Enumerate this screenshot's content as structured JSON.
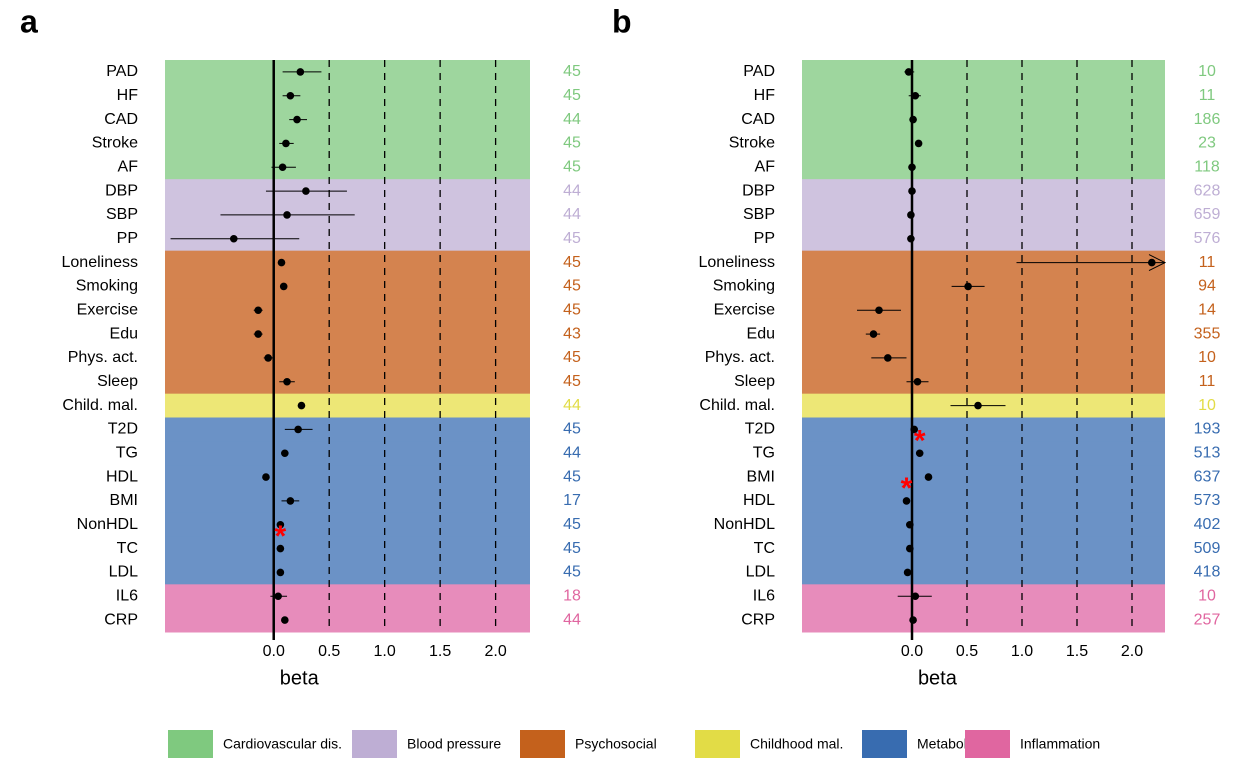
{
  "legend": [
    {
      "name": "Cardiovascular dis.",
      "color": "#7fc97f",
      "band_color": "#9ed69e"
    },
    {
      "name": "Blood pressure",
      "color": "#beaed4",
      "band_color": "#cfc3df"
    },
    {
      "name": "Psychosocial",
      "color": "#c4611c",
      "band_color": "#d4834f"
    },
    {
      "name": "Childhood mal.",
      "color": "#e2dc46",
      "band_color": "#ede776"
    },
    {
      "name": "Metabolic",
      "color": "#386cb0",
      "band_color": "#6b92c6"
    },
    {
      "name": "Inflammation",
      "color": "#e066a0",
      "band_color": "#e78cbb"
    }
  ],
  "chart_data": [
    {
      "type": "forest",
      "panel": "a",
      "x_label": "beta",
      "categories": [
        "PAD",
        "HF",
        "CAD",
        "Stroke",
        "AF",
        "DBP",
        "SBP",
        "PP",
        "Loneliness",
        "Smoking",
        "Exercise",
        "Edu",
        "Phys. act.",
        "Sleep",
        "Child. mal.",
        "T2D",
        "TG",
        "HDL",
        "BMI",
        "NonHDL",
        "TC",
        "LDL",
        "IL6",
        "CRP"
      ],
      "group": [
        "Cardiovascular dis.",
        "Cardiovascular dis.",
        "Cardiovascular dis.",
        "Cardiovascular dis.",
        "Cardiovascular dis.",
        "Blood pressure",
        "Blood pressure",
        "Blood pressure",
        "Psychosocial",
        "Psychosocial",
        "Psychosocial",
        "Psychosocial",
        "Psychosocial",
        "Psychosocial",
        "Childhood mal.",
        "Metabolic",
        "Metabolic",
        "Metabolic",
        "Metabolic",
        "Metabolic",
        "Metabolic",
        "Metabolic",
        "Inflammation",
        "Inflammation"
      ],
      "values": [
        0.24,
        0.15,
        0.21,
        0.11,
        0.08,
        0.29,
        0.12,
        -0.36,
        0.07,
        0.09,
        -0.14,
        -0.14,
        -0.05,
        0.12,
        0.25,
        0.22,
        0.1,
        -0.07,
        0.15,
        0.06,
        0.06,
        0.06,
        0.04,
        0.1
      ],
      "ci_lower": [
        0.08,
        0.08,
        0.14,
        0.05,
        -0.02,
        -0.07,
        -0.48,
        -0.93,
        0.05,
        0.07,
        -0.18,
        -0.18,
        -0.09,
        0.05,
        0.22,
        0.1,
        0.08,
        -0.09,
        0.07,
        0.05,
        0.05,
        0.05,
        -0.03,
        0.08
      ],
      "ci_upper": [
        0.43,
        0.24,
        0.3,
        0.18,
        0.2,
        0.66,
        0.73,
        0.23,
        0.09,
        0.11,
        -0.1,
        -0.1,
        -0.01,
        0.19,
        0.28,
        0.35,
        0.12,
        -0.05,
        0.23,
        0.07,
        0.07,
        0.07,
        0.12,
        0.12
      ],
      "counts": [
        45,
        45,
        44,
        45,
        45,
        44,
        44,
        45,
        45,
        45,
        45,
        43,
        45,
        45,
        44,
        45,
        44,
        45,
        17,
        45,
        45,
        45,
        18,
        44
      ],
      "annotations": [
        {
          "text": "*",
          "category": "TC",
          "value": 0.06
        }
      ],
      "xlim": [
        -0.98,
        2.31
      ],
      "xticks": [
        {
          "value": 0,
          "label": "0.0"
        },
        0.5,
        {
          "value": 1,
          "label": "1.0"
        },
        1.5,
        {
          "value": 2,
          "label": "2.0"
        }
      ]
    },
    {
      "type": "forest",
      "panel": "b",
      "x_label": "beta",
      "categories": [
        "PAD",
        "HF",
        "CAD",
        "Stroke",
        "AF",
        "DBP",
        "SBP",
        "PP",
        "Loneliness",
        "Smoking",
        "Exercise",
        "Edu",
        "Phys. act.",
        "Sleep",
        "Child. mal.",
        "T2D",
        "TG",
        "BMI",
        "HDL",
        "NonHDL",
        "TC",
        "LDL",
        "IL6",
        "CRP"
      ],
      "group": [
        "Cardiovascular dis.",
        "Cardiovascular dis.",
        "Cardiovascular dis.",
        "Cardiovascular dis.",
        "Cardiovascular dis.",
        "Blood pressure",
        "Blood pressure",
        "Blood pressure",
        "Psychosocial",
        "Psychosocial",
        "Psychosocial",
        "Psychosocial",
        "Psychosocial",
        "Psychosocial",
        "Childhood mal.",
        "Metabolic",
        "Metabolic",
        "Metabolic",
        "Metabolic",
        "Metabolic",
        "Metabolic",
        "Metabolic",
        "Inflammation",
        "Inflammation"
      ],
      "values": [
        -0.03,
        0.03,
        0.01,
        0.06,
        0,
        0,
        -0.01,
        -0.01,
        2.18,
        0.51,
        -0.3,
        -0.35,
        -0.22,
        0.05,
        0.6,
        0.02,
        0.07,
        0.15,
        -0.05,
        -0.02,
        -0.02,
        -0.04,
        0.03,
        0.01
      ],
      "ci_lower": [
        -0.07,
        -0.03,
        0,
        0.05,
        -0.01,
        -0.01,
        -0.02,
        -0.02,
        0.95,
        0.36,
        -0.5,
        -0.42,
        -0.37,
        -0.05,
        0.35,
        0.01,
        0.06,
        0.14,
        -0.06,
        -0.03,
        -0.03,
        -0.05,
        -0.13,
        0
      ],
      "ci_upper": [
        0.02,
        0.08,
        0.02,
        0.07,
        0.01,
        0.01,
        0,
        0,
        3.41,
        0.66,
        -0.1,
        -0.29,
        -0.05,
        0.15,
        0.85,
        0.03,
        0.08,
        0.16,
        -0.04,
        -0.01,
        -0.01,
        -0.03,
        0.18,
        0.02
      ],
      "counts": [
        10,
        11,
        186,
        23,
        118,
        628,
        659,
        576,
        11,
        94,
        14,
        355,
        10,
        11,
        10,
        193,
        513,
        637,
        573,
        402,
        509,
        418,
        10,
        257
      ],
      "annotations": [
        {
          "text": "*",
          "category": "TG",
          "value": 0.07
        },
        {
          "text": "*",
          "category": "HDL",
          "value": -0.05
        }
      ],
      "xlim": [
        -1.0,
        2.3
      ],
      "xticks": [
        {
          "value": 0,
          "label": "0.0"
        },
        0.5,
        {
          "value": 1,
          "label": "1.0"
        },
        1.5,
        {
          "value": 2,
          "label": "2.0"
        }
      ]
    }
  ]
}
